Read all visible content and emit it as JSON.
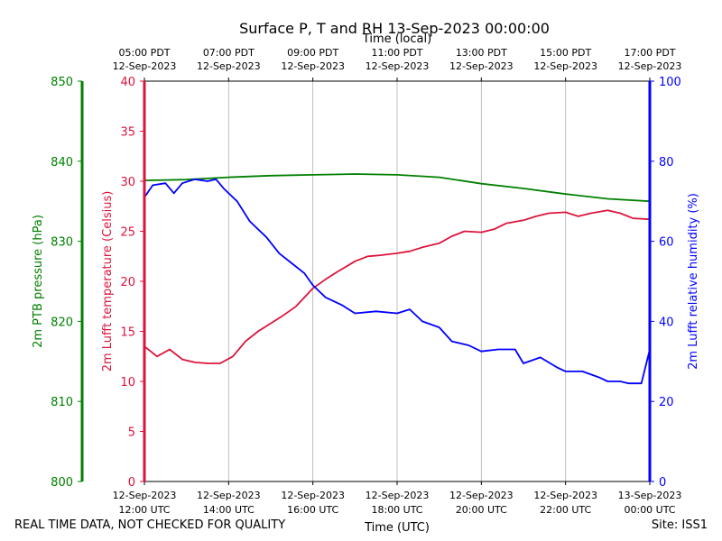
{
  "chart_data": {
    "type": "line",
    "title": "Surface P, T and RH 13-Sep-2023 00:00:00",
    "top_axis_label": "Time (local)",
    "bottom_axis_label": "Time (UTC)",
    "x_range_hours_utc": [
      12,
      24
    ],
    "x_ticks": [
      {
        "hour": 12,
        "utc_date": "12-Sep-2023",
        "utc_time": "12:00 UTC",
        "local_time": "05:00 PDT",
        "local_date": "12-Sep-2023"
      },
      {
        "hour": 14,
        "utc_date": "12-Sep-2023",
        "utc_time": "14:00 UTC",
        "local_time": "07:00 PDT",
        "local_date": "12-Sep-2023"
      },
      {
        "hour": 16,
        "utc_date": "12-Sep-2023",
        "utc_time": "16:00 UTC",
        "local_time": "09:00 PDT",
        "local_date": "12-Sep-2023"
      },
      {
        "hour": 18,
        "utc_date": "12-Sep-2023",
        "utc_time": "18:00 UTC",
        "local_time": "11:00 PDT",
        "local_date": "12-Sep-2023"
      },
      {
        "hour": 20,
        "utc_date": "12-Sep-2023",
        "utc_time": "20:00 UTC",
        "local_time": "13:00 PDT",
        "local_date": "12-Sep-2023"
      },
      {
        "hour": 22,
        "utc_date": "12-Sep-2023",
        "utc_time": "22:00 UTC",
        "local_time": "15:00 PDT",
        "local_date": "12-Sep-2023"
      },
      {
        "hour": 24,
        "utc_date": "13-Sep-2023",
        "utc_time": "00:00 UTC",
        "local_time": "17:00 PDT",
        "local_date": "12-Sep-2023"
      }
    ],
    "axes": {
      "pressure": {
        "label": "2m PTB pressure (hPa)",
        "ylim": [
          800,
          850
        ],
        "ticks": [
          800,
          810,
          820,
          830,
          840,
          850
        ],
        "color": "#008000"
      },
      "temperature": {
        "label": "2m Lufft temperature (Celsius)",
        "ylim": [
          0,
          40
        ],
        "ticks": [
          0,
          5,
          10,
          15,
          20,
          25,
          30,
          35,
          40
        ],
        "color": "#dc143c"
      },
      "humidity": {
        "label": "2m Lufft relative humidity (%)",
        "ylim": [
          0,
          100
        ],
        "ticks": [
          0,
          20,
          40,
          60,
          80,
          100
        ],
        "color": "#0000ff"
      }
    },
    "series": [
      {
        "name": "Pressure",
        "axis": "pressure",
        "color": "#008000",
        "x": [
          12.0,
          13.0,
          14.0,
          15.0,
          16.0,
          17.0,
          18.0,
          19.0,
          20.0,
          21.0,
          22.0,
          23.0,
          24.0
        ],
        "y": [
          837.6,
          837.7,
          838.0,
          838.2,
          838.3,
          838.4,
          838.3,
          838.0,
          837.2,
          836.6,
          835.9,
          835.3,
          835.0
        ]
      },
      {
        "name": "Temperature",
        "axis": "temperature",
        "color": "#dc143c",
        "x": [
          12.0,
          12.3,
          12.6,
          12.9,
          13.2,
          13.5,
          13.8,
          14.1,
          14.4,
          14.7,
          15.0,
          15.3,
          15.6,
          16.0,
          16.3,
          16.6,
          17.0,
          17.3,
          17.6,
          18.0,
          18.3,
          18.6,
          19.0,
          19.3,
          19.6,
          20.0,
          20.3,
          20.6,
          21.0,
          21.3,
          21.6,
          22.0,
          22.3,
          22.6,
          23.0,
          23.3,
          23.6,
          24.0
        ],
        "y": [
          13.5,
          12.5,
          13.2,
          12.2,
          11.9,
          11.8,
          11.8,
          12.5,
          14.0,
          15.0,
          15.8,
          16.6,
          17.5,
          19.3,
          20.2,
          21.0,
          22.0,
          22.5,
          22.6,
          22.8,
          23.0,
          23.4,
          23.8,
          24.5,
          25.0,
          24.9,
          25.2,
          25.8,
          26.1,
          26.5,
          26.8,
          26.9,
          26.5,
          26.8,
          27.1,
          26.8,
          26.3,
          26.2
        ]
      },
      {
        "name": "Relative humidity",
        "axis": "humidity",
        "color": "#0000ff",
        "x": [
          12.0,
          12.2,
          12.5,
          12.7,
          12.9,
          13.2,
          13.5,
          13.7,
          13.9,
          14.2,
          14.5,
          14.9,
          15.2,
          15.5,
          15.8,
          16.0,
          16.3,
          16.7,
          17.0,
          17.5,
          18.0,
          18.3,
          18.6,
          19.0,
          19.3,
          19.7,
          20.0,
          20.4,
          20.8,
          21.0,
          21.4,
          21.8,
          22.0,
          22.4,
          22.8,
          23.0,
          23.3,
          23.5,
          23.7,
          23.8,
          24.0
        ],
        "y": [
          71.0,
          74.0,
          74.5,
          72.0,
          74.5,
          75.5,
          75.0,
          75.5,
          73.0,
          70.0,
          65.0,
          61.0,
          57.0,
          54.5,
          52.0,
          49.0,
          46.0,
          44.0,
          42.0,
          42.5,
          42.0,
          43.0,
          40.0,
          38.5,
          35.0,
          34.0,
          32.5,
          33.0,
          33.0,
          29.5,
          31.0,
          28.5,
          27.5,
          27.5,
          26.0,
          25.0,
          25.0,
          24.5,
          24.5,
          24.5,
          33.0
        ]
      }
    ]
  },
  "footer": {
    "quality_note": "REAL TIME DATA, NOT CHECKED FOR QUALITY",
    "site": "Site: ISS1"
  }
}
